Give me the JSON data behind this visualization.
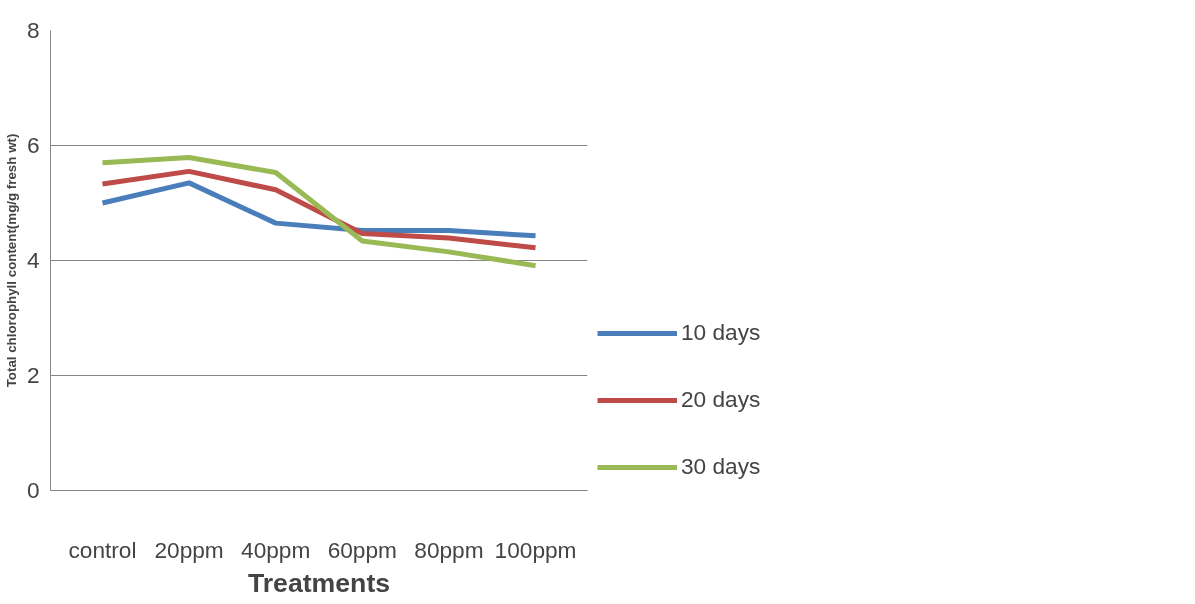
{
  "chart_data": {
    "type": "line",
    "xlabel": "Treatments",
    "ylabel": "Total chlorophyll content(mg/g fresh wt)",
    "categories": [
      "control",
      "20ppm",
      "40ppm",
      "60ppm",
      "80ppm",
      "100ppm"
    ],
    "series": [
      {
        "name": "10 days",
        "color": "#4a7ebb",
        "values": [
          5.0,
          5.35,
          4.65,
          4.52,
          4.52,
          4.43
        ]
      },
      {
        "name": "20 days",
        "color": "#be4b48",
        "values": [
          5.33,
          5.55,
          5.23,
          4.47,
          4.39,
          4.22
        ]
      },
      {
        "name": "30 days",
        "color": "#98b954",
        "values": [
          5.7,
          5.79,
          5.53,
          4.34,
          4.15,
          3.91
        ]
      }
    ],
    "ylim": [
      0,
      8
    ],
    "yticks": [
      0,
      2,
      4,
      6,
      8
    ],
    "grid": "y",
    "legend": "right",
    "marker": "none",
    "line_style": "solid"
  }
}
